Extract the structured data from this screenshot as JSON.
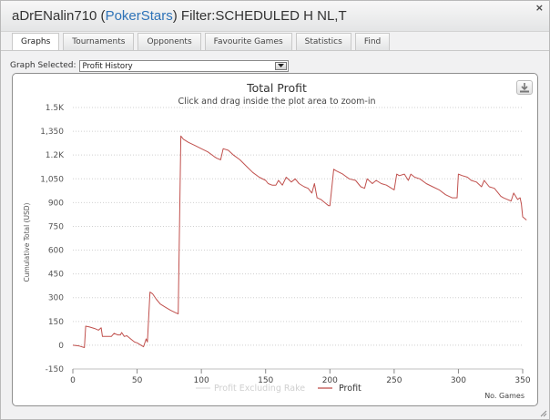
{
  "window": {
    "title_player": "aDrENalin710",
    "title_open_paren": " (",
    "title_site": "PokerStars",
    "title_close_filter": ") Filter:SCHEDULED H NL,T",
    "close_label": "×"
  },
  "tabs": [
    {
      "label": "Graphs",
      "active": true
    },
    {
      "label": "Tournaments",
      "active": false
    },
    {
      "label": "Opponents",
      "active": false
    },
    {
      "label": "Favourite Games",
      "active": false
    },
    {
      "label": "Statistics",
      "active": false
    },
    {
      "label": "Find",
      "active": false
    }
  ],
  "graph_select": {
    "label": "Graph Selected:",
    "value": "Profit History"
  },
  "chart_data": {
    "type": "line",
    "title": "Total Profit",
    "subtitle": "Click and drag inside the plot area to zoom-in",
    "xlabel": "No. Games",
    "ylabel": "Cumulative Total (USD)",
    "xlim": [
      0,
      350
    ],
    "ylim": [
      -150,
      1500
    ],
    "x_ticks": [
      0,
      50,
      100,
      150,
      200,
      250,
      300,
      350
    ],
    "y_ticks": [
      -150,
      0,
      150,
      300,
      450,
      600,
      750,
      900,
      1050,
      1200,
      1350,
      1500
    ],
    "y_tick_labels": [
      "-150",
      "0",
      "150",
      "300",
      "450",
      "600",
      "750",
      "900",
      "1,050",
      "1.2K",
      "1,350",
      "1.5K"
    ],
    "grid": "horizontal dotted",
    "legend": {
      "placement": "bottom-center",
      "items": [
        {
          "name": "Profit Excluding Rake",
          "color": "#e3e3e3",
          "visible": false
        },
        {
          "name": "Profit",
          "color": "#c0504d",
          "visible": true
        }
      ]
    },
    "series": [
      {
        "name": "Profit",
        "color": "#c0504d",
        "points": [
          [
            0,
            0
          ],
          [
            5,
            -5
          ],
          [
            9,
            -15
          ],
          [
            10,
            120
          ],
          [
            13,
            115
          ],
          [
            17,
            105
          ],
          [
            20,
            95
          ],
          [
            22,
            110
          ],
          [
            23,
            55
          ],
          [
            27,
            55
          ],
          [
            30,
            55
          ],
          [
            32,
            75
          ],
          [
            35,
            65
          ],
          [
            37,
            65
          ],
          [
            38,
            80
          ],
          [
            40,
            55
          ],
          [
            42,
            60
          ],
          [
            45,
            40
          ],
          [
            48,
            20
          ],
          [
            50,
            15
          ],
          [
            53,
            0
          ],
          [
            55,
            -10
          ],
          [
            57,
            40
          ],
          [
            58,
            20
          ],
          [
            60,
            335
          ],
          [
            62,
            325
          ],
          [
            65,
            290
          ],
          [
            68,
            260
          ],
          [
            72,
            240
          ],
          [
            76,
            220
          ],
          [
            80,
            205
          ],
          [
            82,
            198
          ],
          [
            84,
            1320
          ],
          [
            86,
            1300
          ],
          [
            90,
            1280
          ],
          [
            95,
            1260
          ],
          [
            100,
            1240
          ],
          [
            105,
            1220
          ],
          [
            110,
            1190
          ],
          [
            112,
            1180
          ],
          [
            115,
            1170
          ],
          [
            117,
            1240
          ],
          [
            121,
            1230
          ],
          [
            125,
            1200
          ],
          [
            130,
            1170
          ],
          [
            135,
            1130
          ],
          [
            140,
            1090
          ],
          [
            145,
            1060
          ],
          [
            150,
            1040
          ],
          [
            152,
            1020
          ],
          [
            155,
            1010
          ],
          [
            158,
            1010
          ],
          [
            160,
            1040
          ],
          [
            163,
            1010
          ],
          [
            166,
            1060
          ],
          [
            170,
            1030
          ],
          [
            173,
            1050
          ],
          [
            176,
            1020
          ],
          [
            180,
            1000
          ],
          [
            183,
            990
          ],
          [
            186,
            960
          ],
          [
            188,
            1020
          ],
          [
            190,
            930
          ],
          [
            193,
            920
          ],
          [
            196,
            900
          ],
          [
            199,
            880
          ],
          [
            200,
            880
          ],
          [
            203,
            1110
          ],
          [
            205,
            1100
          ],
          [
            210,
            1080
          ],
          [
            215,
            1050
          ],
          [
            220,
            1040
          ],
          [
            224,
            1000
          ],
          [
            227,
            990
          ],
          [
            229,
            1050
          ],
          [
            233,
            1020
          ],
          [
            236,
            1040
          ],
          [
            240,
            1020
          ],
          [
            244,
            1010
          ],
          [
            248,
            990
          ],
          [
            250,
            980
          ],
          [
            252,
            1080
          ],
          [
            254,
            1070
          ],
          [
            258,
            1080
          ],
          [
            261,
            1040
          ],
          [
            263,
            1080
          ],
          [
            266,
            1060
          ],
          [
            270,
            1050
          ],
          [
            275,
            1020
          ],
          [
            280,
            1000
          ],
          [
            285,
            980
          ],
          [
            290,
            950
          ],
          [
            295,
            930
          ],
          [
            299,
            930
          ],
          [
            300,
            1080
          ],
          [
            303,
            1070
          ],
          [
            307,
            1060
          ],
          [
            310,
            1040
          ],
          [
            314,
            1030
          ],
          [
            318,
            1000
          ],
          [
            320,
            1040
          ],
          [
            324,
            1000
          ],
          [
            328,
            990
          ],
          [
            331,
            960
          ],
          [
            333,
            940
          ],
          [
            335,
            930
          ],
          [
            338,
            920
          ],
          [
            341,
            910
          ],
          [
            343,
            960
          ],
          [
            346,
            920
          ],
          [
            348,
            930
          ],
          [
            349,
            890
          ],
          [
            350,
            810
          ],
          [
            353,
            790
          ]
        ]
      }
    ]
  }
}
